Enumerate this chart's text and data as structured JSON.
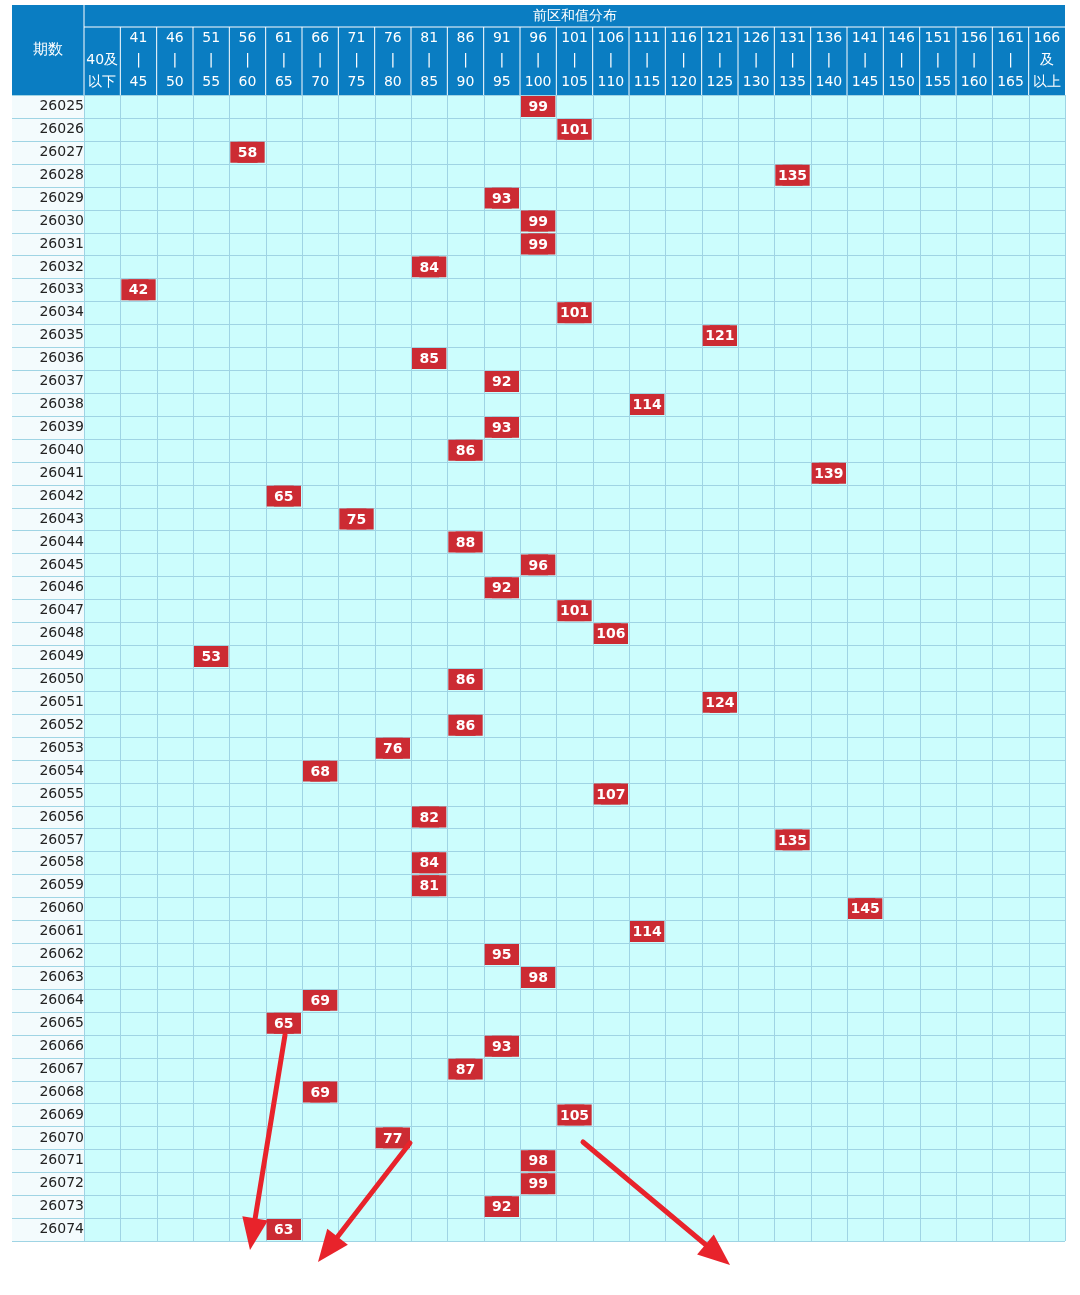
{
  "chart_data": {
    "type": "heatmap",
    "xlabel": "前区和值分布",
    "ylabel": "期数",
    "color": "#cc2b33",
    "grid": true,
    "data_labels": true,
    "categories": [
      "40及以下",
      "41\n|\n45",
      "46\n|\n50",
      "51\n|\n55",
      "56\n|\n60",
      "61\n|\n65",
      "66\n|\n70",
      "71\n|\n75",
      "76\n|\n80",
      "81\n|\n85",
      "86\n|\n90",
      "91\n|\n95",
      "96\n|\n100",
      "101\n|\n105",
      "106\n|\n110",
      "111\n|\n115",
      "116\n|\n120",
      "121\n|\n125",
      "126\n|\n130",
      "131\n|\n135",
      "136\n|\n140",
      "141\n|\n145",
      "146\n|\n150",
      "151\n|\n155",
      "156\n|\n160",
      "161\n|\n165",
      "166及以上"
    ],
    "y_categories": [
      "26025",
      "26026",
      "26027",
      "26028",
      "26029",
      "26030",
      "26031",
      "26032",
      "26033",
      "26034",
      "26035",
      "26036",
      "26037",
      "26038",
      "26039",
      "26040",
      "26041",
      "26042",
      "26043",
      "26044",
      "26045",
      "26046",
      "26047",
      "26048",
      "26049",
      "26050",
      "26051",
      "26052",
      "26053",
      "26054",
      "26055",
      "26056",
      "26057",
      "26058",
      "26059",
      "26060",
      "26061",
      "26062",
      "26063",
      "26064",
      "26065",
      "26066",
      "26067",
      "26068",
      "26069",
      "26070",
      "26071",
      "26072",
      "26073",
      "26074"
    ],
    "cells": [
      [
        null,
        null,
        null,
        null,
        null,
        null,
        null,
        null,
        null,
        null,
        null,
        null,
        99,
        null,
        null,
        null,
        null,
        null,
        null,
        null,
        null,
        null,
        null,
        null,
        null,
        null,
        null
      ],
      [
        null,
        null,
        null,
        null,
        null,
        null,
        null,
        null,
        null,
        null,
        null,
        null,
        null,
        101,
        null,
        null,
        null,
        null,
        null,
        null,
        null,
        null,
        null,
        null,
        null,
        null,
        null
      ],
      [
        null,
        null,
        null,
        null,
        58,
        null,
        null,
        null,
        null,
        null,
        null,
        null,
        null,
        null,
        null,
        null,
        null,
        null,
        null,
        null,
        null,
        null,
        null,
        null,
        null,
        null,
        null
      ],
      [
        null,
        null,
        null,
        null,
        null,
        null,
        null,
        null,
        null,
        null,
        null,
        null,
        null,
        null,
        null,
        null,
        null,
        null,
        null,
        135,
        null,
        null,
        null,
        null,
        null,
        null,
        null
      ],
      [
        null,
        null,
        null,
        null,
        null,
        null,
        null,
        null,
        null,
        null,
        null,
        93,
        null,
        null,
        null,
        null,
        null,
        null,
        null,
        null,
        null,
        null,
        null,
        null,
        null,
        null,
        null
      ],
      [
        null,
        null,
        null,
        null,
        null,
        null,
        null,
        null,
        null,
        null,
        null,
        null,
        99,
        null,
        null,
        null,
        null,
        null,
        null,
        null,
        null,
        null,
        null,
        null,
        null,
        null,
        null
      ],
      [
        null,
        null,
        null,
        null,
        null,
        null,
        null,
        null,
        null,
        null,
        null,
        null,
        99,
        null,
        null,
        null,
        null,
        null,
        null,
        null,
        null,
        null,
        null,
        null,
        null,
        null,
        null
      ],
      [
        null,
        null,
        null,
        null,
        null,
        null,
        null,
        null,
        null,
        84,
        null,
        null,
        null,
        null,
        null,
        null,
        null,
        null,
        null,
        null,
        null,
        null,
        null,
        null,
        null,
        null,
        null
      ],
      [
        null,
        42,
        null,
        null,
        null,
        null,
        null,
        null,
        null,
        null,
        null,
        null,
        null,
        null,
        null,
        null,
        null,
        null,
        null,
        null,
        null,
        null,
        null,
        null,
        null,
        null,
        null
      ],
      [
        null,
        null,
        null,
        null,
        null,
        null,
        null,
        null,
        null,
        null,
        null,
        null,
        null,
        101,
        null,
        null,
        null,
        null,
        null,
        null,
        null,
        null,
        null,
        null,
        null,
        null,
        null
      ],
      [
        null,
        null,
        null,
        null,
        null,
        null,
        null,
        null,
        null,
        null,
        null,
        null,
        null,
        null,
        null,
        null,
        null,
        121,
        null,
        null,
        null,
        null,
        null,
        null,
        null,
        null,
        null
      ],
      [
        null,
        null,
        null,
        null,
        null,
        null,
        null,
        null,
        null,
        85,
        null,
        null,
        null,
        null,
        null,
        null,
        null,
        null,
        null,
        null,
        null,
        null,
        null,
        null,
        null,
        null,
        null
      ],
      [
        null,
        null,
        null,
        null,
        null,
        null,
        null,
        null,
        null,
        null,
        null,
        92,
        null,
        null,
        null,
        null,
        null,
        null,
        null,
        null,
        null,
        null,
        null,
        null,
        null,
        null,
        null
      ],
      [
        null,
        null,
        null,
        null,
        null,
        null,
        null,
        null,
        null,
        null,
        null,
        null,
        null,
        null,
        null,
        114,
        null,
        null,
        null,
        null,
        null,
        null,
        null,
        null,
        null,
        null,
        null
      ],
      [
        null,
        null,
        null,
        null,
        null,
        null,
        null,
        null,
        null,
        null,
        null,
        93,
        null,
        null,
        null,
        null,
        null,
        null,
        null,
        null,
        null,
        null,
        null,
        null,
        null,
        null,
        null
      ],
      [
        null,
        null,
        null,
        null,
        null,
        null,
        null,
        null,
        null,
        null,
        86,
        null,
        null,
        null,
        null,
        null,
        null,
        null,
        null,
        null,
        null,
        null,
        null,
        null,
        null,
        null,
        null
      ],
      [
        null,
        null,
        null,
        null,
        null,
        null,
        null,
        null,
        null,
        null,
        null,
        null,
        null,
        null,
        null,
        null,
        null,
        null,
        null,
        null,
        139,
        null,
        null,
        null,
        null,
        null,
        null
      ],
      [
        null,
        null,
        null,
        null,
        null,
        65,
        null,
        null,
        null,
        null,
        null,
        null,
        null,
        null,
        null,
        null,
        null,
        null,
        null,
        null,
        null,
        null,
        null,
        null,
        null,
        null,
        null
      ],
      [
        null,
        null,
        null,
        null,
        null,
        null,
        null,
        75,
        null,
        null,
        null,
        null,
        null,
        null,
        null,
        null,
        null,
        null,
        null,
        null,
        null,
        null,
        null,
        null,
        null,
        null,
        null
      ],
      [
        null,
        null,
        null,
        null,
        null,
        null,
        null,
        null,
        null,
        null,
        88,
        null,
        null,
        null,
        null,
        null,
        null,
        null,
        null,
        null,
        null,
        null,
        null,
        null,
        null,
        null,
        null
      ],
      [
        null,
        null,
        null,
        null,
        null,
        null,
        null,
        null,
        null,
        null,
        null,
        null,
        96,
        null,
        null,
        null,
        null,
        null,
        null,
        null,
        null,
        null,
        null,
        null,
        null,
        null,
        null
      ],
      [
        null,
        null,
        null,
        null,
        null,
        null,
        null,
        null,
        null,
        null,
        null,
        92,
        null,
        null,
        null,
        null,
        null,
        null,
        null,
        null,
        null,
        null,
        null,
        null,
        null,
        null,
        null
      ],
      [
        null,
        null,
        null,
        null,
        null,
        null,
        null,
        null,
        null,
        null,
        null,
        null,
        null,
        101,
        null,
        null,
        null,
        null,
        null,
        null,
        null,
        null,
        null,
        null,
        null,
        null,
        null
      ],
      [
        null,
        null,
        null,
        null,
        null,
        null,
        null,
        null,
        null,
        null,
        null,
        null,
        null,
        null,
        106,
        null,
        null,
        null,
        null,
        null,
        null,
        null,
        null,
        null,
        null,
        null,
        null
      ],
      [
        null,
        null,
        null,
        53,
        null,
        null,
        null,
        null,
        null,
        null,
        null,
        null,
        null,
        null,
        null,
        null,
        null,
        null,
        null,
        null,
        null,
        null,
        null,
        null,
        null,
        null,
        null
      ],
      [
        null,
        null,
        null,
        null,
        null,
        null,
        null,
        null,
        null,
        null,
        86,
        null,
        null,
        null,
        null,
        null,
        null,
        null,
        null,
        null,
        null,
        null,
        null,
        null,
        null,
        null,
        null
      ],
      [
        null,
        null,
        null,
        null,
        null,
        null,
        null,
        null,
        null,
        null,
        null,
        null,
        null,
        null,
        null,
        null,
        null,
        124,
        null,
        null,
        null,
        null,
        null,
        null,
        null,
        null,
        null
      ],
      [
        null,
        null,
        null,
        null,
        null,
        null,
        null,
        null,
        null,
        null,
        86,
        null,
        null,
        null,
        null,
        null,
        null,
        null,
        null,
        null,
        null,
        null,
        null,
        null,
        null,
        null,
        null
      ],
      [
        null,
        null,
        null,
        null,
        null,
        null,
        null,
        null,
        76,
        null,
        null,
        null,
        null,
        null,
        null,
        null,
        null,
        null,
        null,
        null,
        null,
        null,
        null,
        null,
        null,
        null,
        null
      ],
      [
        null,
        null,
        null,
        null,
        null,
        null,
        68,
        null,
        null,
        null,
        null,
        null,
        null,
        null,
        null,
        null,
        null,
        null,
        null,
        null,
        null,
        null,
        null,
        null,
        null,
        null,
        null
      ],
      [
        null,
        null,
        null,
        null,
        null,
        null,
        null,
        null,
        null,
        null,
        null,
        null,
        null,
        null,
        107,
        null,
        null,
        null,
        null,
        null,
        null,
        null,
        null,
        null,
        null,
        null,
        null
      ],
      [
        null,
        null,
        null,
        null,
        null,
        null,
        null,
        null,
        null,
        82,
        null,
        null,
        null,
        null,
        null,
        null,
        null,
        null,
        null,
        null,
        null,
        null,
        null,
        null,
        null,
        null,
        null
      ],
      [
        null,
        null,
        null,
        null,
        null,
        null,
        null,
        null,
        null,
        null,
        null,
        null,
        null,
        null,
        null,
        null,
        null,
        null,
        null,
        135,
        null,
        null,
        null,
        null,
        null,
        null,
        null
      ],
      [
        null,
        null,
        null,
        null,
        null,
        null,
        null,
        null,
        null,
        84,
        null,
        null,
        null,
        null,
        null,
        null,
        null,
        null,
        null,
        null,
        null,
        null,
        null,
        null,
        null,
        null,
        null
      ],
      [
        null,
        null,
        null,
        null,
        null,
        null,
        null,
        null,
        null,
        81,
        null,
        null,
        null,
        null,
        null,
        null,
        null,
        null,
        null,
        null,
        null,
        null,
        null,
        null,
        null,
        null,
        null
      ],
      [
        null,
        null,
        null,
        null,
        null,
        null,
        null,
        null,
        null,
        null,
        null,
        null,
        null,
        null,
        null,
        null,
        null,
        null,
        null,
        null,
        null,
        145,
        null,
        null,
        null,
        null,
        null
      ],
      [
        null,
        null,
        null,
        null,
        null,
        null,
        null,
        null,
        null,
        null,
        null,
        null,
        null,
        null,
        null,
        114,
        null,
        null,
        null,
        null,
        null,
        null,
        null,
        null,
        null,
        null,
        null
      ],
      [
        null,
        null,
        null,
        null,
        null,
        null,
        null,
        null,
        null,
        null,
        null,
        95,
        null,
        null,
        null,
        null,
        null,
        null,
        null,
        null,
        null,
        null,
        null,
        null,
        null,
        null,
        null
      ],
      [
        null,
        null,
        null,
        null,
        null,
        null,
        null,
        null,
        null,
        null,
        null,
        null,
        98,
        null,
        null,
        null,
        null,
        null,
        null,
        null,
        null,
        null,
        null,
        null,
        null,
        null,
        null
      ],
      [
        null,
        null,
        null,
        null,
        null,
        null,
        69,
        null,
        null,
        null,
        null,
        null,
        null,
        null,
        null,
        null,
        null,
        null,
        null,
        null,
        null,
        null,
        null,
        null,
        null,
        null,
        null
      ],
      [
        null,
        null,
        null,
        null,
        null,
        65,
        null,
        null,
        null,
        null,
        null,
        null,
        null,
        null,
        null,
        null,
        null,
        null,
        null,
        null,
        null,
        null,
        null,
        null,
        null,
        null,
        null
      ],
      [
        null,
        null,
        null,
        null,
        null,
        null,
        null,
        null,
        null,
        null,
        null,
        93,
        null,
        null,
        null,
        null,
        null,
        null,
        null,
        null,
        null,
        null,
        null,
        null,
        null,
        null,
        null
      ],
      [
        null,
        null,
        null,
        null,
        null,
        null,
        null,
        null,
        null,
        null,
        87,
        null,
        null,
        null,
        null,
        null,
        null,
        null,
        null,
        null,
        null,
        null,
        null,
        null,
        null,
        null,
        null
      ],
      [
        null,
        null,
        null,
        null,
        null,
        null,
        69,
        null,
        null,
        null,
        null,
        null,
        null,
        null,
        null,
        null,
        null,
        null,
        null,
        null,
        null,
        null,
        null,
        null,
        null,
        null,
        null
      ],
      [
        null,
        null,
        null,
        null,
        null,
        null,
        null,
        null,
        null,
        null,
        null,
        null,
        null,
        105,
        null,
        null,
        null,
        null,
        null,
        null,
        null,
        null,
        null,
        null,
        null,
        null,
        null
      ],
      [
        null,
        null,
        null,
        null,
        null,
        null,
        null,
        null,
        77,
        null,
        null,
        null,
        null,
        null,
        null,
        null,
        null,
        null,
        null,
        null,
        null,
        null,
        null,
        null,
        null,
        null,
        null
      ],
      [
        null,
        null,
        null,
        null,
        null,
        null,
        null,
        null,
        null,
        null,
        null,
        null,
        98,
        null,
        null,
        null,
        null,
        null,
        null,
        null,
        null,
        null,
        null,
        null,
        null,
        null,
        null
      ],
      [
        null,
        null,
        null,
        null,
        null,
        null,
        null,
        null,
        null,
        null,
        null,
        null,
        99,
        null,
        null,
        null,
        null,
        null,
        null,
        null,
        null,
        null,
        null,
        null,
        null,
        null,
        null
      ],
      [
        null,
        null,
        null,
        null,
        null,
        null,
        null,
        null,
        null,
        null,
        null,
        92,
        null,
        null,
        null,
        null,
        null,
        null,
        null,
        null,
        null,
        null,
        null,
        null,
        null,
        null,
        null
      ],
      [
        null,
        null,
        null,
        null,
        null,
        63,
        null,
        null,
        null,
        null,
        null,
        null,
        null,
        null,
        null,
        null,
        null,
        null,
        null,
        null,
        null,
        null,
        null,
        null,
        null,
        null,
        null
      ]
    ]
  }
}
